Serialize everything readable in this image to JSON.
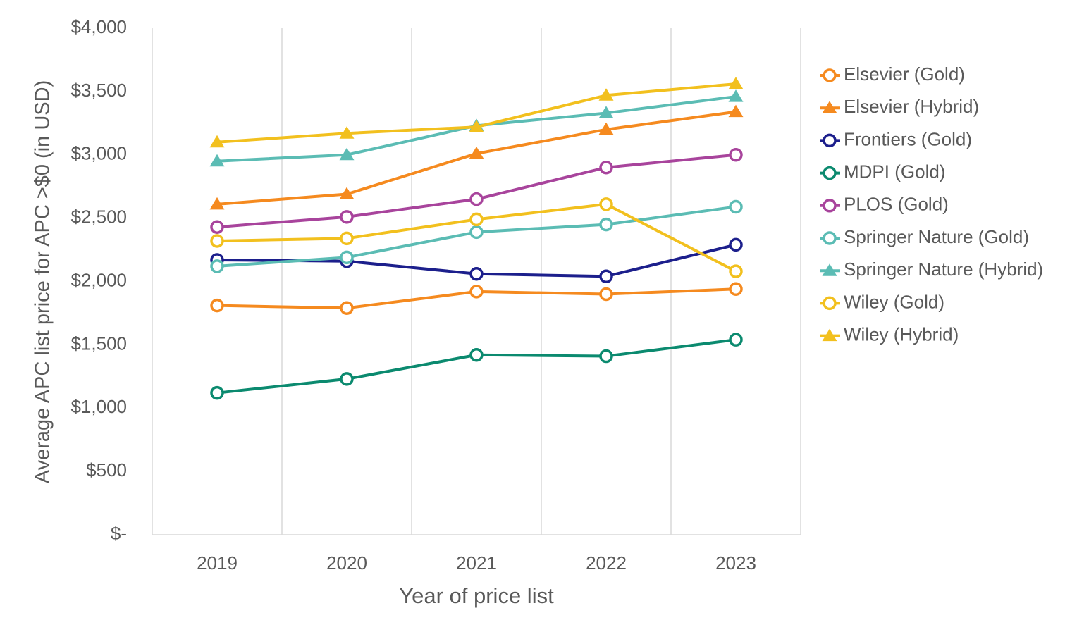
{
  "chart_data": {
    "type": "line",
    "xlabel": "Year of price list",
    "ylabel": "Average APC list price for APC >$0 (in USD)",
    "categories": [
      "2019",
      "2020",
      "2021",
      "2022",
      "2023"
    ],
    "ylim": [
      0,
      4000
    ],
    "yticks": [
      {
        "value": 0,
        "label": "$-"
      },
      {
        "value": 500,
        "label": "$500"
      },
      {
        "value": 1000,
        "label": "$1,000"
      },
      {
        "value": 1500,
        "label": "$1,500"
      },
      {
        "value": 2000,
        "label": "$2,000"
      },
      {
        "value": 2500,
        "label": "$2,500"
      },
      {
        "value": 3000,
        "label": "$3,000"
      },
      {
        "value": 3500,
        "label": "$3,500"
      },
      {
        "value": 4000,
        "label": "$4,000"
      }
    ],
    "grid": "vertical",
    "legend": "right",
    "series": [
      {
        "name": "Elsevier (Gold)",
        "color": "#f58a1f",
        "marker": "circle",
        "values": [
          1810,
          1790,
          1920,
          1900,
          1940
        ]
      },
      {
        "name": "Elsevier (Hybrid)",
        "color": "#f58a1f",
        "marker": "triangle",
        "values": [
          2610,
          2690,
          3010,
          3200,
          3340
        ]
      },
      {
        "name": "Frontiers (Gold)",
        "color": "#1c1f8c",
        "marker": "circle",
        "values": [
          2170,
          2160,
          2060,
          2040,
          2290
        ]
      },
      {
        "name": "MDPI (Gold)",
        "color": "#0b8a6f",
        "marker": "circle",
        "values": [
          1120,
          1230,
          1420,
          1410,
          1540
        ]
      },
      {
        "name": "PLOS (Gold)",
        "color": "#a8449c",
        "marker": "circle",
        "values": [
          2430,
          2510,
          2650,
          2900,
          3000
        ]
      },
      {
        "name": "Springer Nature (Gold)",
        "color": "#5bbcb4",
        "marker": "circle",
        "values": [
          2120,
          2190,
          2390,
          2450,
          2590
        ]
      },
      {
        "name": "Springer Nature (Hybrid)",
        "color": "#5bbcb4",
        "marker": "triangle",
        "values": [
          2950,
          3000,
          3230,
          3330,
          3460
        ]
      },
      {
        "name": "Wiley (Gold)",
        "color": "#f2c01e",
        "marker": "circle",
        "values": [
          2320,
          2340,
          2490,
          2610,
          2080
        ]
      },
      {
        "name": "Wiley (Hybrid)",
        "color": "#f2c01e",
        "marker": "triangle",
        "values": [
          3100,
          3170,
          3220,
          3470,
          3560
        ]
      }
    ]
  }
}
